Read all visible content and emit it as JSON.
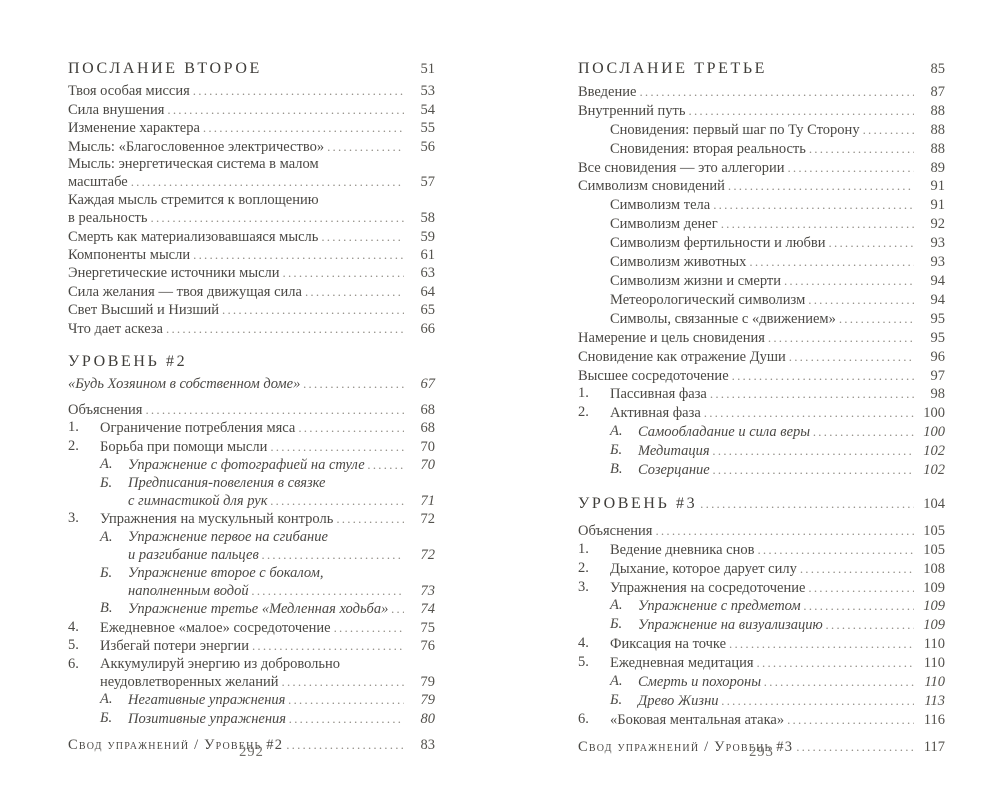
{
  "colors": {
    "background": "#ffffff",
    "body_text": "#4a4844",
    "heading_text": "#3f3d39",
    "page_numbers": "#53514c",
    "dot_leaders": "#8e8a82",
    "folio": "#6f6d68"
  },
  "left_page": {
    "folio": "292",
    "entries": [
      {
        "style": "header",
        "lines": [
          "ПОСЛАНИЕ ВТОРОЕ"
        ],
        "page": "51",
        "dots": false
      },
      {
        "lines": [
          "Твоя особая миссия"
        ],
        "page": "53"
      },
      {
        "lines": [
          "Сила внушения"
        ],
        "page": "54"
      },
      {
        "lines": [
          "Изменение характера"
        ],
        "page": "55"
      },
      {
        "lines": [
          "Мысль: «Благословенное электричество»"
        ],
        "page": "56"
      },
      {
        "lines": [
          "Мысль: энергетическая система в малом",
          "масштабе"
        ],
        "page": "57"
      },
      {
        "lines": [
          "Каждая мысль стремится к воплощению",
          "в реальность"
        ],
        "page": "58"
      },
      {
        "lines": [
          "Смерть как материализовавшаяся мысль"
        ],
        "page": "59"
      },
      {
        "lines": [
          "Компоненты мысли"
        ],
        "page": "61"
      },
      {
        "lines": [
          "Энергетические источники мысли"
        ],
        "page": "63"
      },
      {
        "lines": [
          "Сила желания — твоя движущая сила"
        ],
        "page": "64"
      },
      {
        "lines": [
          "Свет Высший и Низший"
        ],
        "page": "65"
      },
      {
        "lines": [
          "Что дает аскеза"
        ],
        "page": "66"
      },
      {
        "style": "header",
        "gap": "lg",
        "lines": [
          "УРОВЕНЬ #2"
        ]
      },
      {
        "style": "italic",
        "lines": [
          "«Будь Хозяином в собственном доме»"
        ],
        "page": "67"
      },
      {
        "gap": "md",
        "lines": [
          "Объяснения"
        ],
        "page": "68"
      },
      {
        "indent": 1,
        "marker": "1.",
        "lines": [
          "Ограничение потребления мяса"
        ],
        "page": "68"
      },
      {
        "indent": 1,
        "marker": "2.",
        "lines": [
          "Борьба при помощи мысли"
        ],
        "page": "70"
      },
      {
        "indent": 2,
        "marker": "А.",
        "style": "italic",
        "lines": [
          "Упражнение с фотографией на стуле"
        ],
        "page": "70"
      },
      {
        "indent": 2,
        "marker": "Б.",
        "style": "italic",
        "lines": [
          "Предписания-повеления в связке",
          "с гимнастикой для рук"
        ],
        "page": "71"
      },
      {
        "indent": 1,
        "marker": "3.",
        "lines": [
          "Упражнения на мускульный контроль"
        ],
        "page": "72"
      },
      {
        "indent": 2,
        "marker": "А.",
        "style": "italic",
        "lines": [
          "Упражнение первое на сгибание",
          "и разгибание пальцев"
        ],
        "page": "72"
      },
      {
        "indent": 2,
        "marker": "Б.",
        "style": "italic",
        "lines": [
          "Упражнение второе с бокалом,",
          "наполненным водой"
        ],
        "page": "73"
      },
      {
        "indent": 2,
        "marker": "В.",
        "style": "italic",
        "lines": [
          "Упражнение третье «Медленная ходьба»"
        ],
        "page": "74"
      },
      {
        "indent": 1,
        "marker": "4.",
        "lines": [
          "Ежедневное «малое» сосредоточение"
        ],
        "page": "75"
      },
      {
        "indent": 1,
        "marker": "5.",
        "lines": [
          "Избегай потери энергии"
        ],
        "page": "76"
      },
      {
        "indent": 1,
        "marker": "6.",
        "lines": [
          "Аккумулируй энергию из добровольно",
          "неудовлетворенных желаний"
        ],
        "page": "79"
      },
      {
        "indent": 2,
        "marker": "А.",
        "style": "italic",
        "lines": [
          "Негативные упражнения"
        ],
        "page": "79"
      },
      {
        "indent": 2,
        "marker": "Б.",
        "style": "italic",
        "lines": [
          "Позитивные упражнения"
        ],
        "page": "80"
      },
      {
        "style": "smallcaps",
        "gap": "md",
        "lines": [
          "Свод упражнений / Уровень #2"
        ],
        "page": "83"
      }
    ]
  },
  "right_page": {
    "folio": "293",
    "entries": [
      {
        "style": "header",
        "lines": [
          "ПОСЛАНИЕ ТРЕТЬЕ"
        ],
        "page": "85",
        "dots": false
      },
      {
        "lines": [
          "Введение"
        ],
        "page": "87"
      },
      {
        "lines": [
          "Внутренний путь"
        ],
        "page": "88"
      },
      {
        "indent": 1,
        "lines": [
          "Сновидения: первый шаг по Ту Сторону"
        ],
        "page": "88"
      },
      {
        "indent": 1,
        "lines": [
          "Сновидения: вторая реальность"
        ],
        "page": "88"
      },
      {
        "lines": [
          "Все сновидения — это аллегории"
        ],
        "page": "89"
      },
      {
        "lines": [
          "Символизм сновидений"
        ],
        "page": "91"
      },
      {
        "indent": 1,
        "lines": [
          "Символизм тела"
        ],
        "page": "91"
      },
      {
        "indent": 1,
        "lines": [
          "Символизм денег"
        ],
        "page": "92"
      },
      {
        "indent": 1,
        "lines": [
          "Символизм фертильности и любви"
        ],
        "page": "93"
      },
      {
        "indent": 1,
        "lines": [
          "Символизм животных"
        ],
        "page": "93"
      },
      {
        "indent": 1,
        "lines": [
          "Символизм жизни и смерти"
        ],
        "page": "94"
      },
      {
        "indent": 1,
        "lines": [
          "Метеорологический символизм"
        ],
        "page": "94"
      },
      {
        "indent": 1,
        "lines": [
          "Символы, связанные с «движением»"
        ],
        "page": "95"
      },
      {
        "lines": [
          "Намерение и цель сновидения"
        ],
        "page": "95"
      },
      {
        "lines": [
          "Сновидение как отражение Души"
        ],
        "page": "96"
      },
      {
        "lines": [
          "Высшее сосредоточение"
        ],
        "page": "97"
      },
      {
        "indent": 1,
        "marker": "1.",
        "lines": [
          "Пассивная фаза"
        ],
        "page": "98"
      },
      {
        "indent": 1,
        "marker": "2.",
        "lines": [
          "Активная фаза"
        ],
        "page": "100"
      },
      {
        "indent": 2,
        "marker": "А.",
        "style": "italic",
        "lines": [
          "Самообладание и сила веры"
        ],
        "page": "100"
      },
      {
        "indent": 2,
        "marker": "Б.",
        "style": "italic",
        "lines": [
          "Медитация"
        ],
        "page": "102"
      },
      {
        "indent": 2,
        "marker": "В.",
        "style": "italic",
        "lines": [
          "Созерцание"
        ],
        "page": "102"
      },
      {
        "style": "header",
        "gap": "lg",
        "lines": [
          "УРОВЕНЬ #3"
        ],
        "page": "104"
      },
      {
        "gap": "md",
        "lines": [
          "Объяснения"
        ],
        "page": "105"
      },
      {
        "indent": 1,
        "marker": "1.",
        "lines": [
          "Ведение дневника снов"
        ],
        "page": "105"
      },
      {
        "indent": 1,
        "marker": "2.",
        "lines": [
          "Дыхание, которое дарует силу"
        ],
        "page": "108"
      },
      {
        "indent": 1,
        "marker": "3.",
        "lines": [
          "Упражнения на сосредоточение"
        ],
        "page": "109"
      },
      {
        "indent": 2,
        "marker": "А.",
        "style": "italic",
        "lines": [
          "Упражнение с предметом"
        ],
        "page": "109"
      },
      {
        "indent": 2,
        "marker": "Б.",
        "style": "italic",
        "lines": [
          "Упражнение на визуализацию"
        ],
        "page": "109"
      },
      {
        "indent": 1,
        "marker": "4.",
        "lines": [
          "Фиксация на точке"
        ],
        "page": "110"
      },
      {
        "indent": 1,
        "marker": "5.",
        "lines": [
          "Ежедневная медитация"
        ],
        "page": "110"
      },
      {
        "indent": 2,
        "marker": "А.",
        "style": "italic",
        "lines": [
          "Смерть и похороны"
        ],
        "page": "110"
      },
      {
        "indent": 2,
        "marker": "Б.",
        "style": "italic",
        "lines": [
          "Древо Жизни"
        ],
        "page": "113"
      },
      {
        "indent": 1,
        "marker": "6.",
        "lines": [
          "«Боковая ментальная атака»"
        ],
        "page": "116"
      },
      {
        "style": "smallcaps",
        "gap": "md",
        "lines": [
          "Свод упражнений / Уровень #3"
        ],
        "page": "117"
      }
    ]
  }
}
